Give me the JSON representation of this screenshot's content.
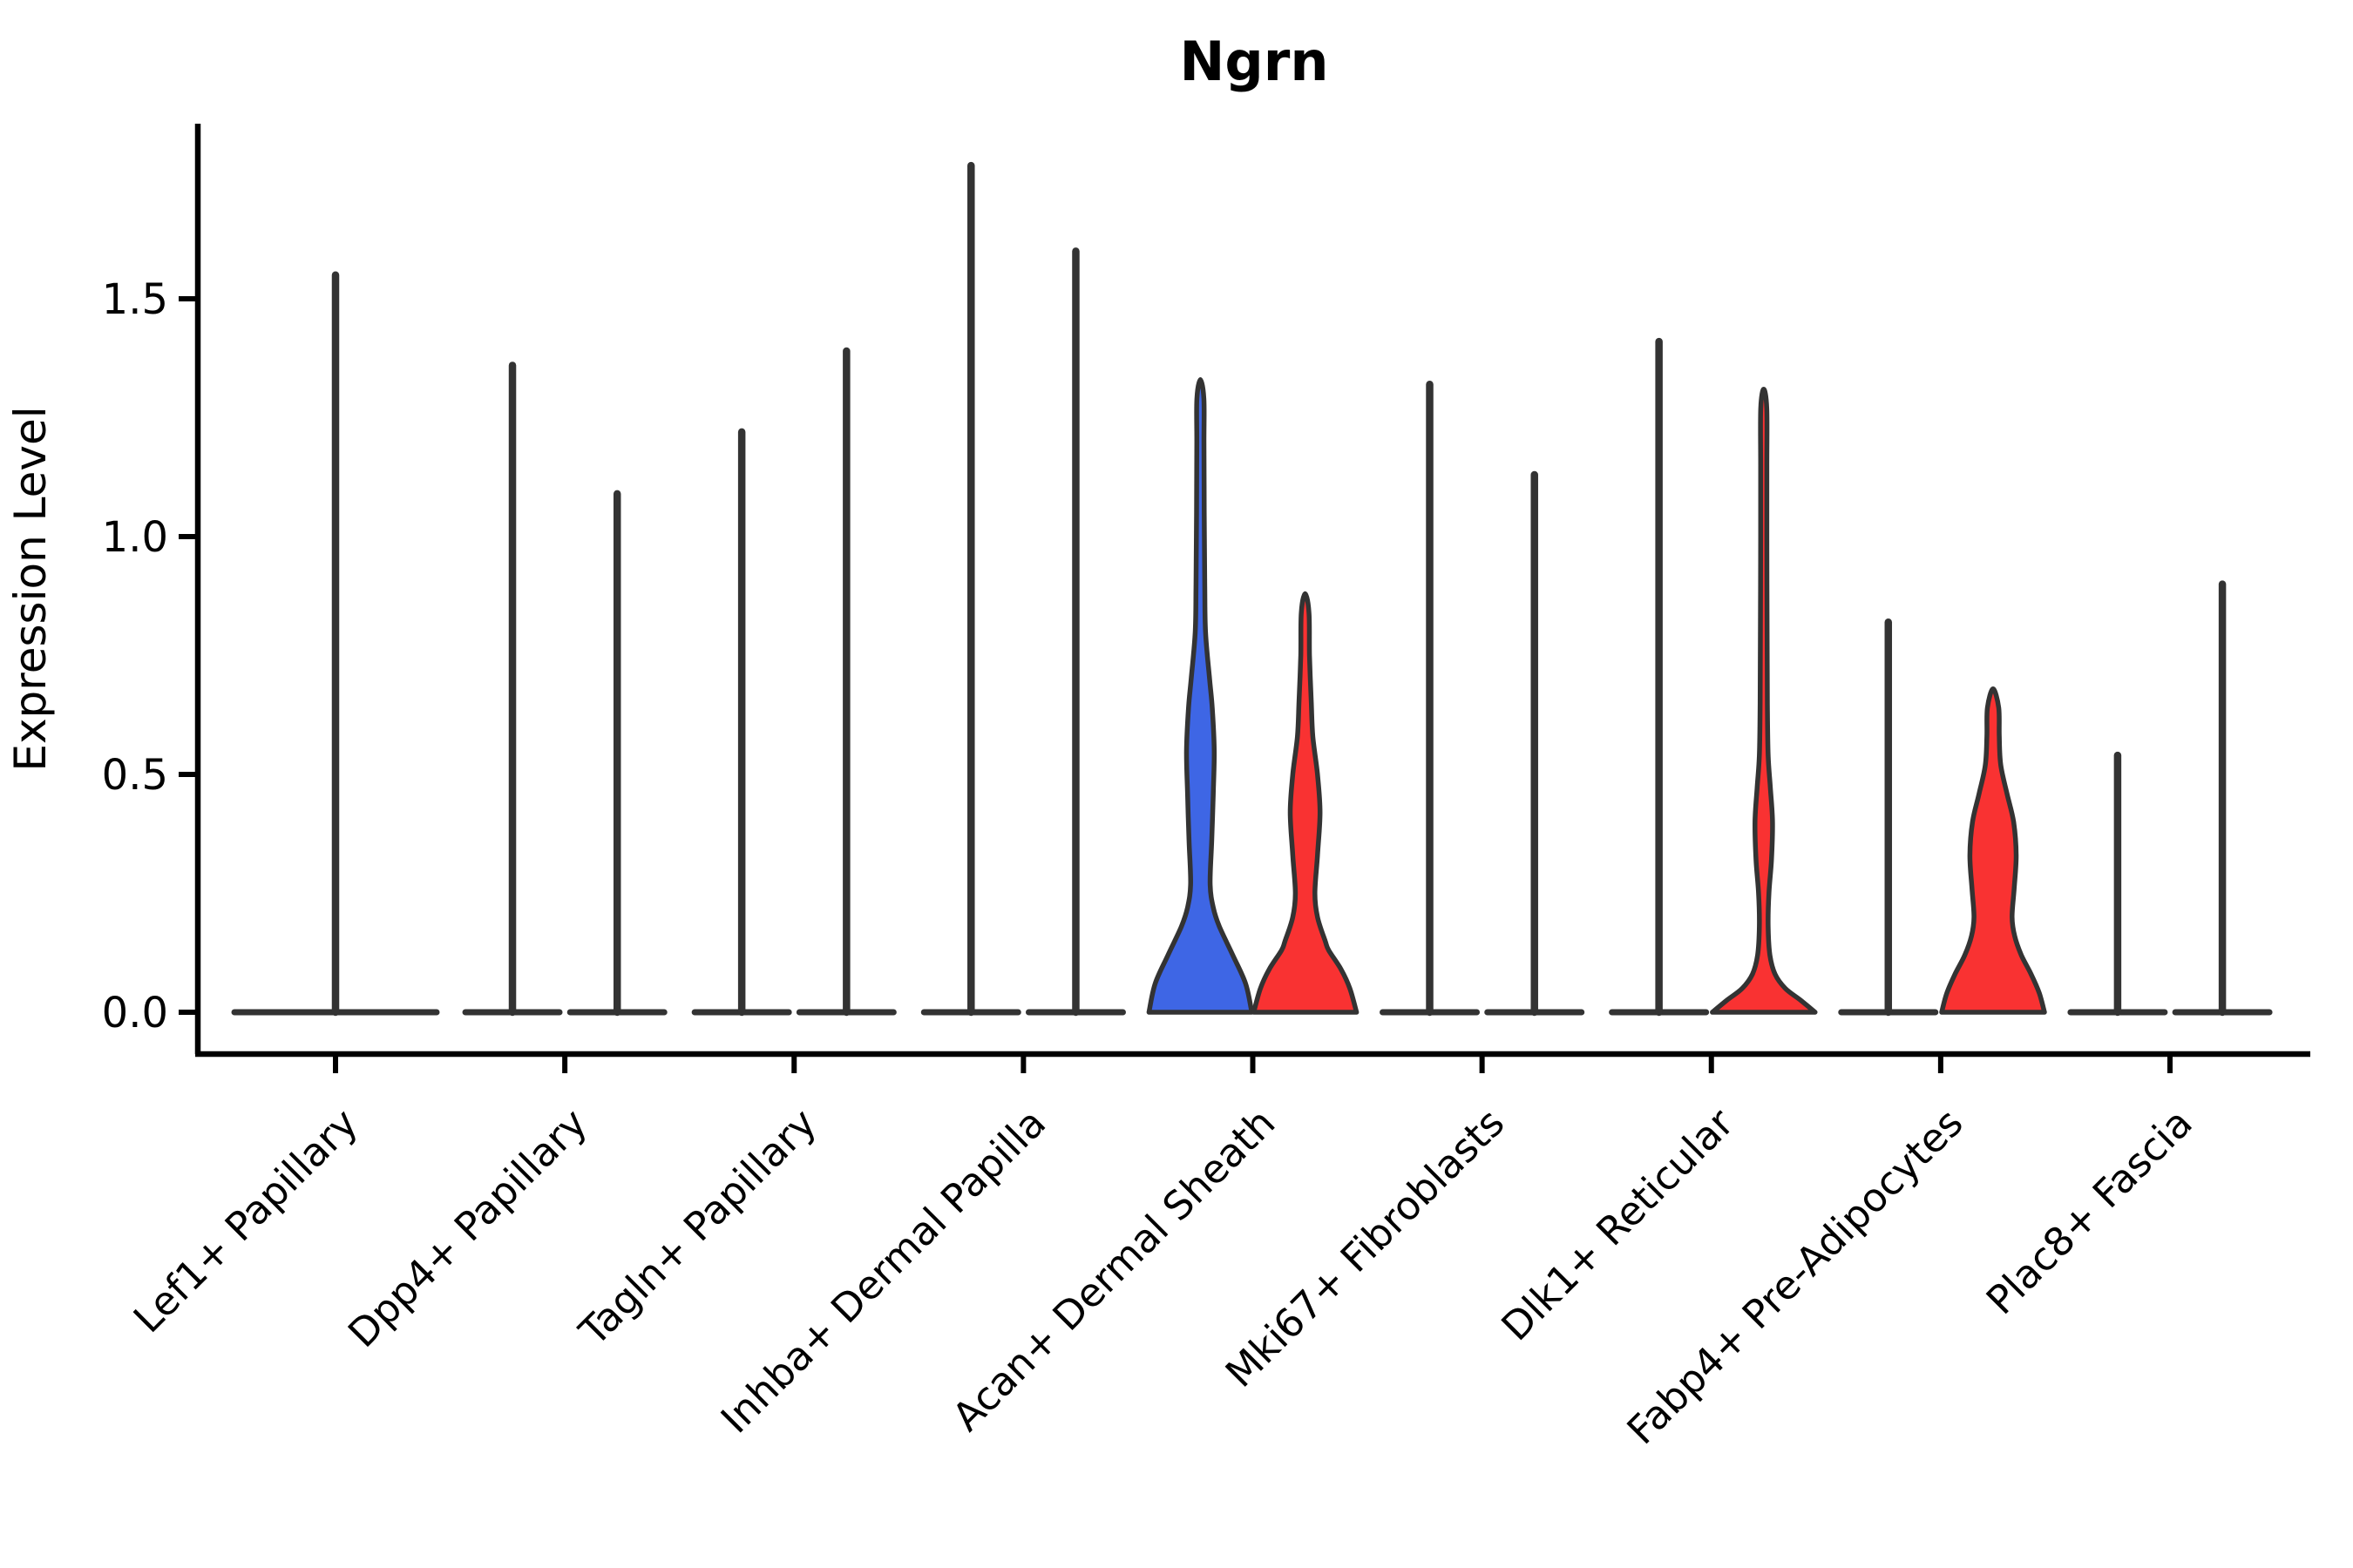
{
  "colors": {
    "blue": "#3E66E5",
    "red": "#F93232",
    "outline": "#333333",
    "spike": "#333333",
    "axis": "#000000",
    "text": "#000000",
    "background": "#ffffff"
  },
  "chart_data": {
    "type": "violin",
    "title": "Ngrn",
    "ylabel": "Expression Level",
    "yticks": [
      "0.0",
      "0.5",
      "1.0",
      "1.5"
    ],
    "ytick_values": [
      0.0,
      0.5,
      1.0,
      1.5
    ],
    "ylim": [
      -0.09,
      1.87
    ],
    "grid": false,
    "legend": "none",
    "categories": [
      "Lef1+ Papillary",
      "Dpp4+ Papillary",
      "Tagln+ Papillary",
      "Inhba+ Dermal Papilla",
      "Acan+ Dermal Sheath",
      "Mki67+ Fibroblasts",
      "Dlk1+ Reticular",
      "Fabp4+ Pre-Adipocytes",
      "Plac8+ Fascia"
    ],
    "groups": [
      {
        "category": "Lef1+ Papillary",
        "violins": [
          {
            "position": "center",
            "style": "spike",
            "fill": "none",
            "max": 1.55
          }
        ]
      },
      {
        "category": "Dpp4+ Papillary",
        "violins": [
          {
            "position": "left",
            "style": "spike",
            "fill": "none",
            "max": 1.36
          },
          {
            "position": "right",
            "style": "spike",
            "fill": "none",
            "max": 1.09
          }
        ]
      },
      {
        "category": "Tagln+ Papillary",
        "violins": [
          {
            "position": "left",
            "style": "spike",
            "fill": "none",
            "max": 1.22
          },
          {
            "position": "right",
            "style": "spike",
            "fill": "none",
            "max": 1.39
          }
        ]
      },
      {
        "category": "Inhba+ Dermal Papilla",
        "violins": [
          {
            "position": "left",
            "style": "spike",
            "fill": "none",
            "max": 1.78
          },
          {
            "position": "right",
            "style": "spike",
            "fill": "none",
            "max": 1.6
          }
        ]
      },
      {
        "category": "Acan+ Dermal Sheath",
        "violins": [
          {
            "position": "left",
            "style": "shaped",
            "fill": "blue",
            "max": 1.33,
            "profile": [
              [
                0,
                1.0
              ],
              [
                0.06,
                0.88
              ],
              [
                0.12,
                0.63
              ],
              [
                0.18,
                0.37
              ],
              [
                0.22,
                0.25
              ],
              [
                0.27,
                0.19
              ],
              [
                0.36,
                0.22
              ],
              [
                0.46,
                0.25
              ],
              [
                0.55,
                0.27
              ],
              [
                0.64,
                0.23
              ],
              [
                0.7,
                0.18
              ],
              [
                0.8,
                0.1
              ],
              [
                0.9,
                0.085
              ],
              [
                1.05,
                0.075
              ],
              [
                1.2,
                0.07
              ],
              [
                1.29,
                0.068
              ],
              [
                1.33,
                0.0
              ]
            ]
          },
          {
            "position": "right",
            "style": "shaped",
            "fill": "red",
            "max": 0.88,
            "profile": [
              [
                0,
                1.0
              ],
              [
                0.05,
                0.87
              ],
              [
                0.09,
                0.7
              ],
              [
                0.13,
                0.46
              ],
              [
                0.15,
                0.39
              ],
              [
                0.2,
                0.24
              ],
              [
                0.25,
                0.19
              ],
              [
                0.33,
                0.24
              ],
              [
                0.42,
                0.29
              ],
              [
                0.5,
                0.24
              ],
              [
                0.58,
                0.15
              ],
              [
                0.65,
                0.12
              ],
              [
                0.75,
                0.085
              ],
              [
                0.84,
                0.075
              ],
              [
                0.88,
                0.0
              ]
            ]
          }
        ]
      },
      {
        "category": "Mki67+ Fibroblasts",
        "violins": [
          {
            "position": "left",
            "style": "spike",
            "fill": "none",
            "max": 1.32
          },
          {
            "position": "right",
            "style": "spike",
            "fill": "none",
            "max": 1.13
          }
        ]
      },
      {
        "category": "Dlk1+ Reticular",
        "violins": [
          {
            "position": "left",
            "style": "spike",
            "fill": "none",
            "max": 1.41
          },
          {
            "position": "right",
            "style": "shaped",
            "fill": "red",
            "max": 1.31,
            "profile": [
              [
                0,
                1.0
              ],
              [
                0.025,
                0.72
              ],
              [
                0.05,
                0.42
              ],
              [
                0.08,
                0.22
              ],
              [
                0.12,
                0.12
              ],
              [
                0.18,
                0.085
              ],
              [
                0.25,
                0.1
              ],
              [
                0.32,
                0.15
              ],
              [
                0.4,
                0.17
              ],
              [
                0.47,
                0.13
              ],
              [
                0.54,
                0.085
              ],
              [
                0.65,
                0.07
              ],
              [
                0.8,
                0.065
              ],
              [
                1.0,
                0.06
              ],
              [
                1.15,
                0.06
              ],
              [
                1.27,
                0.058
              ],
              [
                1.31,
                0.0
              ]
            ]
          }
        ]
      },
      {
        "category": "Fabp4+ Pre-Adipocytes",
        "violins": [
          {
            "position": "left",
            "style": "spike",
            "fill": "none",
            "max": 0.82
          },
          {
            "position": "right",
            "style": "shaped",
            "fill": "red",
            "max": 0.68,
            "profile": [
              [
                0,
                1.0
              ],
              [
                0.04,
                0.9
              ],
              [
                0.08,
                0.74
              ],
              [
                0.12,
                0.55
              ],
              [
                0.16,
                0.42
              ],
              [
                0.2,
                0.37
              ],
              [
                0.26,
                0.41
              ],
              [
                0.33,
                0.45
              ],
              [
                0.4,
                0.4
              ],
              [
                0.46,
                0.27
              ],
              [
                0.52,
                0.15
              ],
              [
                0.58,
                0.12
              ],
              [
                0.64,
                0.11
              ],
              [
                0.68,
                0.0
              ]
            ]
          }
        ]
      },
      {
        "category": "Plac8+ Fascia",
        "violins": [
          {
            "position": "left",
            "style": "spike",
            "fill": "none",
            "max": 0.54
          },
          {
            "position": "right",
            "style": "spike",
            "fill": "none",
            "max": 0.9
          }
        ]
      }
    ]
  }
}
